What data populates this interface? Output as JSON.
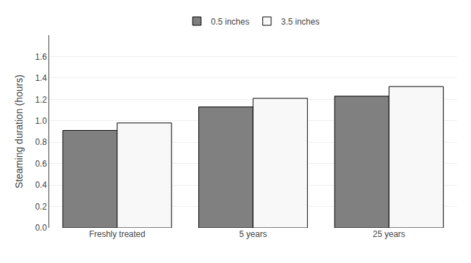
{
  "chart_data": {
    "type": "bar",
    "categories": [
      "Freshly treated",
      "5 years",
      "25 years"
    ],
    "series": [
      {
        "name": "0.5 inches",
        "color": "#808080",
        "values": [
          0.91,
          1.13,
          1.23
        ]
      },
      {
        "name": "3.5 inches",
        "color": "#f8f8f8",
        "values": [
          0.98,
          1.21,
          1.32
        ]
      }
    ],
    "ylabel": "Steaming duration (hours)",
    "ylim": [
      0,
      1.8
    ],
    "yticks": [
      {
        "value": 0,
        "label": "0.0"
      },
      0.2,
      0.4,
      0.6,
      0.8,
      {
        "value": 1.0,
        "label": "1.0"
      },
      1.2,
      1.4,
      1.6
    ],
    "grid": true,
    "legend": "top"
  }
}
